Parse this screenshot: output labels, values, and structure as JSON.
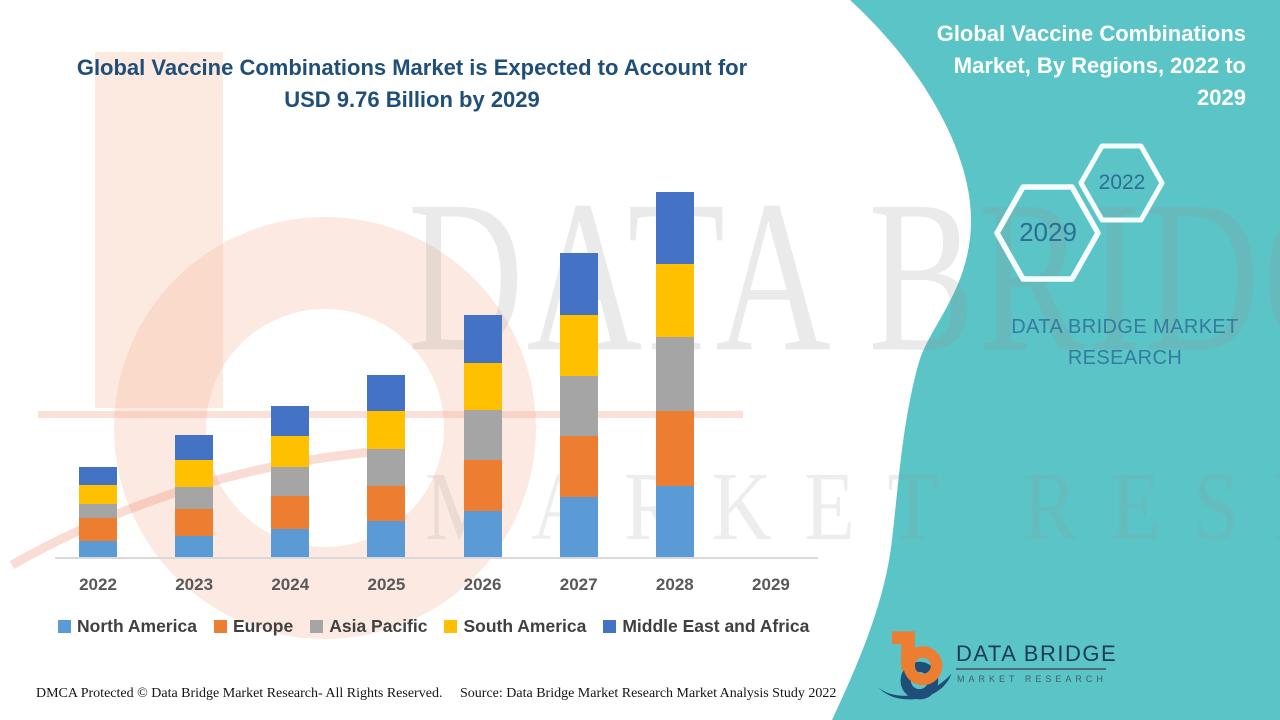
{
  "header": {
    "title_line1": "Global Vaccine Combinations Market is Expected to Account for",
    "title_line2": "USD 9.76 Billion by 2029"
  },
  "side_panel": {
    "heading": "Global Vaccine Combinations Market, By Regions, 2022 to 2029",
    "accent_color": "#5BC4C6",
    "hexagons": [
      {
        "label": "2029"
      },
      {
        "label": "2022"
      }
    ],
    "brand_line1": "DATA BRIDGE MARKET",
    "brand_line2": "RESEARCH"
  },
  "watermarks": {
    "big_text": "DATA BRIDGE",
    "sub_text": "MARKET RESEARCH"
  },
  "logo": {
    "name": "DATA BRIDGE",
    "tagline": "MARKET RESEARCH",
    "orange": "#ED7D31",
    "navy": "#1F4E79"
  },
  "footer": {
    "dmca": "DMCA Protected © Data Bridge Market Research- All Rights Reserved.",
    "source": "Source: Data Bridge Market Research Market Analysis Study 2022"
  },
  "chart_data": {
    "type": "bar",
    "stacked": true,
    "title": "Global Vaccine Combinations Market is Expected to Account for USD 9.76 Billion by 2029",
    "xlabel": "",
    "ylabel": "",
    "grid": false,
    "value_axis_visible": false,
    "legend_position": "bottom",
    "units": "relative units; chart has no value axis, values estimated from bar heights (2028 total = 366)",
    "categories": [
      "2022",
      "2023",
      "2024",
      "2025",
      "2026",
      "2027",
      "2028",
      "2029"
    ],
    "series": [
      {
        "name": "North America",
        "color": "#5B9BD5",
        "values": [
          17,
          22,
          29,
          37,
          47,
          61,
          72,
          0
        ]
      },
      {
        "name": "Europe",
        "color": "#ED7D31",
        "values": [
          23,
          27,
          33,
          35,
          51,
          61,
          75,
          0
        ]
      },
      {
        "name": "Asia Pacific",
        "color": "#A5A5A5",
        "values": [
          14,
          22,
          29,
          37,
          50,
          60,
          74,
          0
        ]
      },
      {
        "name": "South America",
        "color": "#FFC000",
        "values": [
          19,
          27,
          31,
          38,
          47,
          61,
          73,
          0
        ]
      },
      {
        "name": "Middle East and Africa",
        "color": "#4472C4",
        "values": [
          18,
          25,
          30,
          36,
          48,
          62,
          72,
          0
        ]
      }
    ],
    "totals": [
      91,
      123,
      152,
      183,
      243,
      305,
      366,
      0
    ]
  }
}
